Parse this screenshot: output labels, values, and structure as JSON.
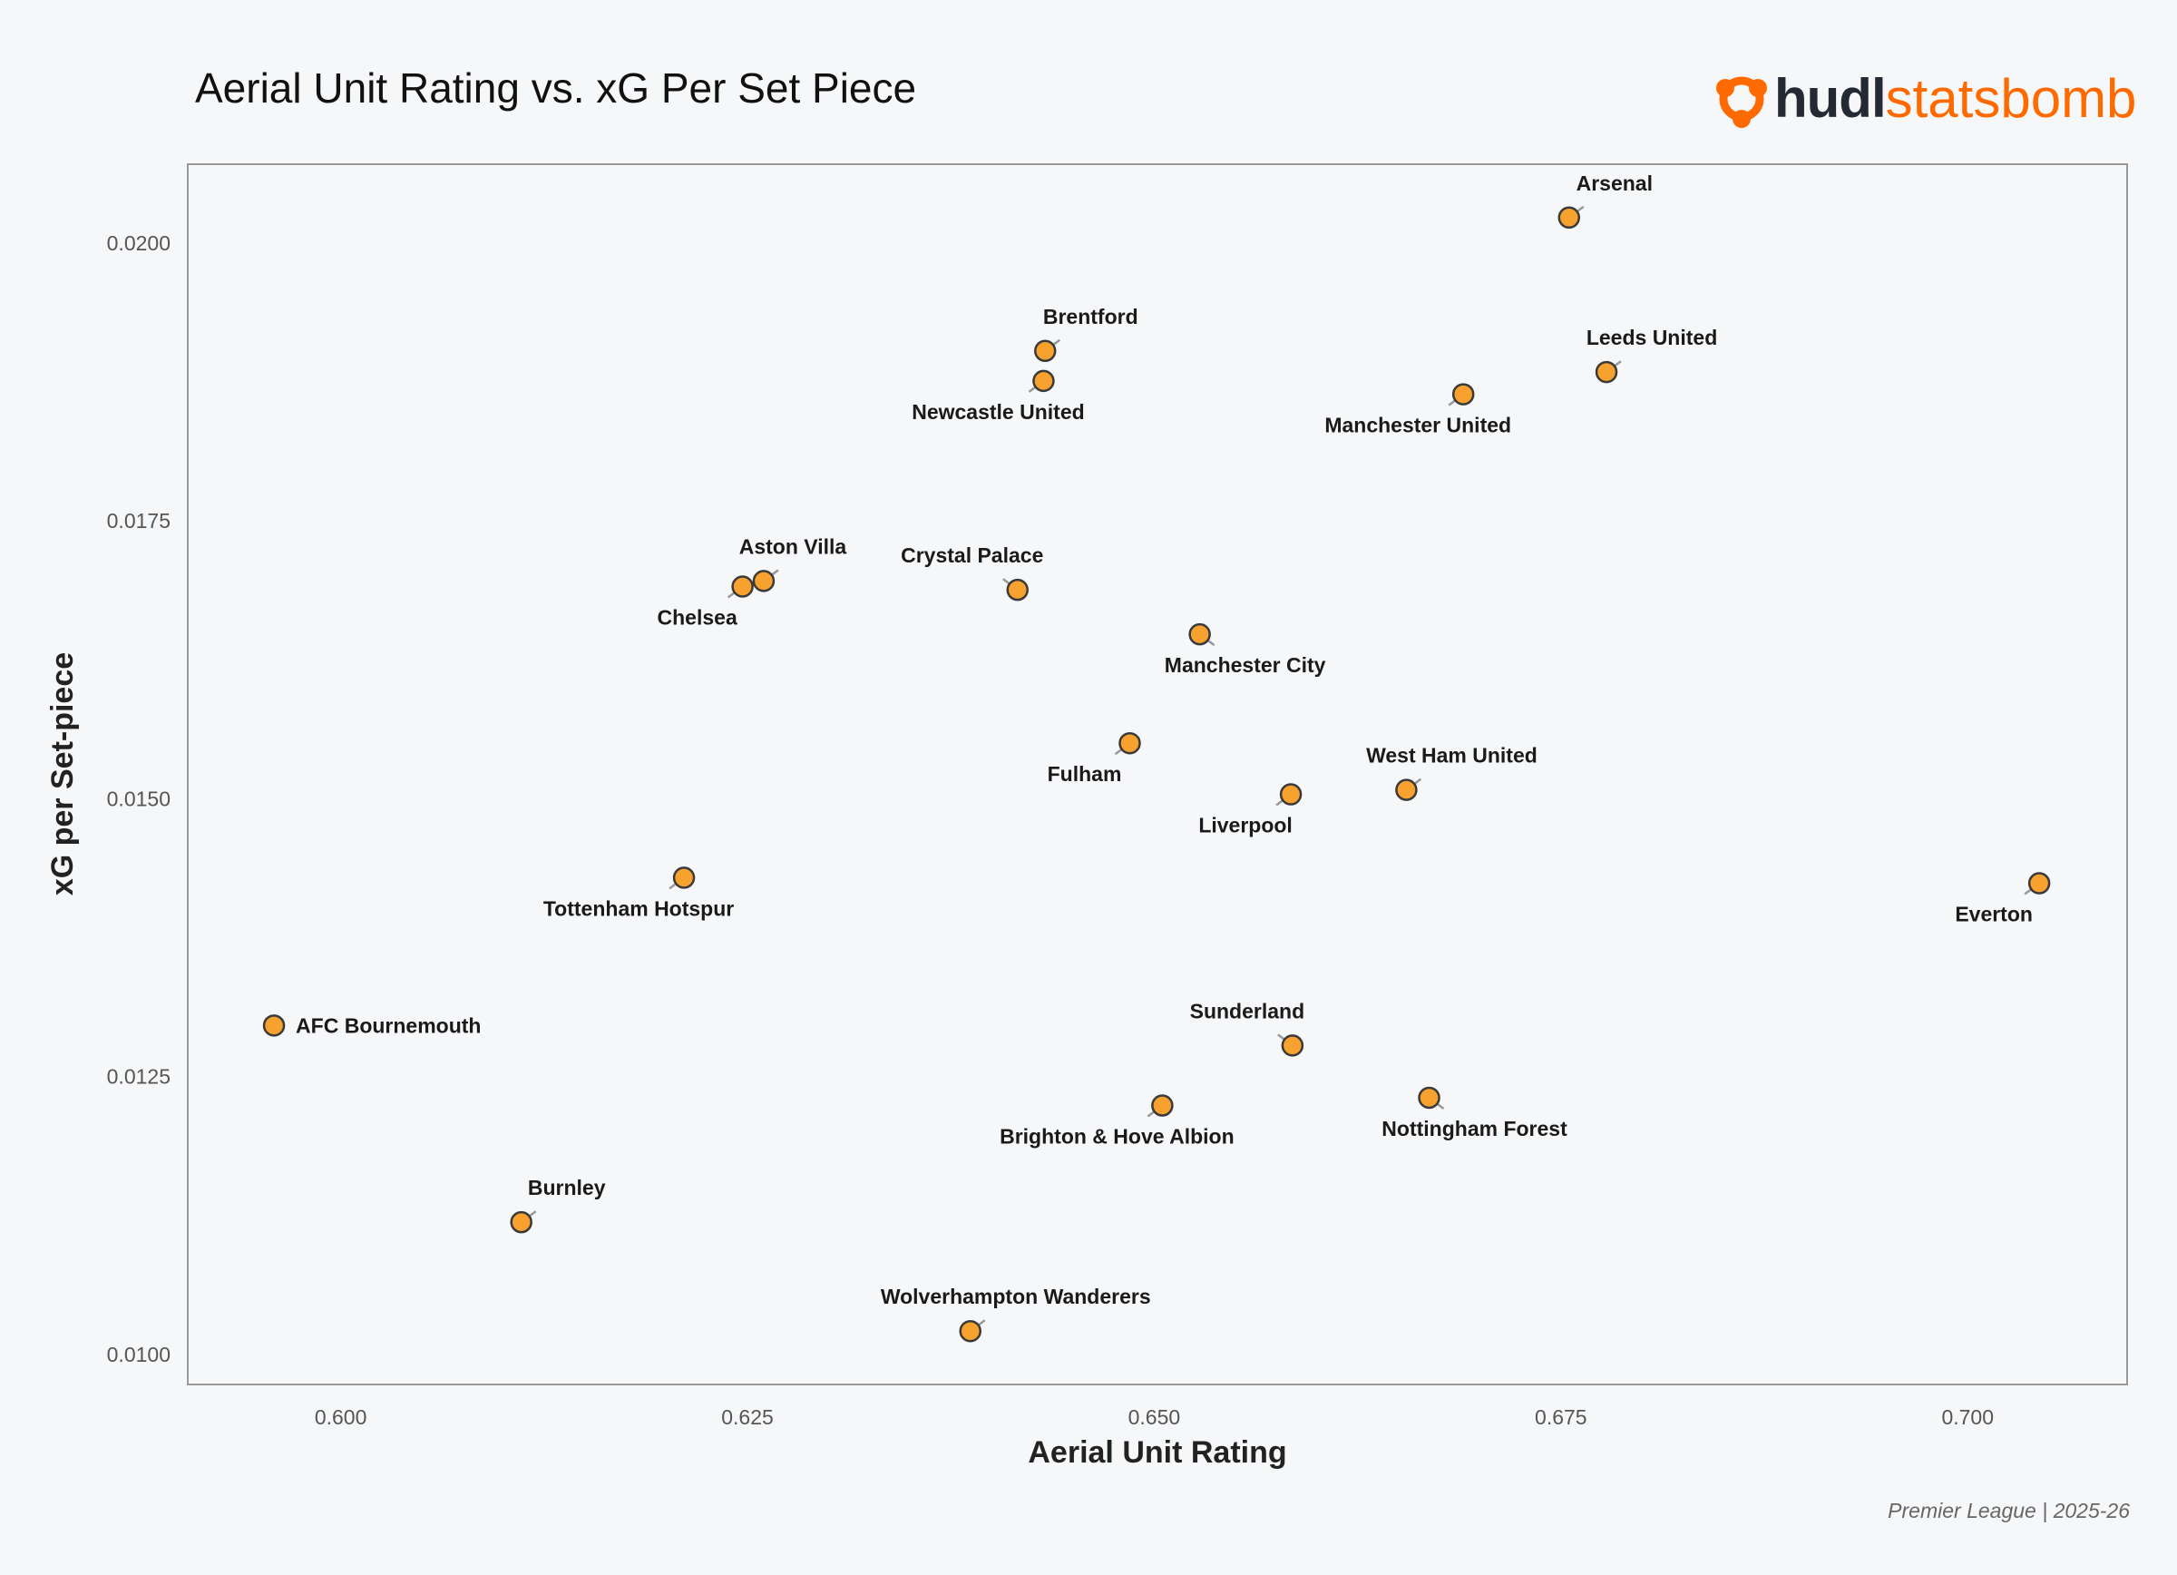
{
  "header": {
    "title": "Aerial Unit Rating vs. xG Per Set Piece",
    "logo_hudl": "hudl",
    "logo_statsbomb": "statsbomb"
  },
  "footer": {
    "text": "Premier League | 2025-26"
  },
  "colors": {
    "marker": "#f7a12f",
    "marker_edge": "#3a3a3a",
    "leader": "#999999",
    "frame": "#999999",
    "brand": "#ff6a00"
  },
  "chart_data": {
    "type": "scatter",
    "title": "Aerial Unit Rating vs. xG Per Set Piece",
    "xlabel": "Aerial Unit Rating",
    "ylabel": "xG per Set-piece",
    "xlim": [
      0.5906,
      0.7098
    ],
    "ylim": [
      0.00973,
      0.02071
    ],
    "xticks": [
      0.6,
      0.625,
      0.65,
      0.675,
      0.7
    ],
    "xtick_labels": [
      "0.600",
      "0.625",
      "0.650",
      "0.675",
      "0.700"
    ],
    "yticks": [
      0.01,
      0.0125,
      0.015,
      0.0175,
      0.02
    ],
    "ytick_labels": [
      "0.0100",
      "0.0125",
      "0.0150",
      "0.0175",
      "0.0200"
    ],
    "grid": false,
    "points": [
      {
        "team": "Arsenal",
        "x": 0.6755,
        "y": 0.02023,
        "label_side": "up-right"
      },
      {
        "team": "Brentford",
        "x": 0.6433,
        "y": 0.01903,
        "label_side": "up-right"
      },
      {
        "team": "Newcastle United",
        "x": 0.6432,
        "y": 0.01876,
        "label_side": "down-left"
      },
      {
        "team": "Leeds United",
        "x": 0.6778,
        "y": 0.01884,
        "label_side": "up-right"
      },
      {
        "team": "Manchester United",
        "x": 0.669,
        "y": 0.01864,
        "label_side": "down-left"
      },
      {
        "team": "Aston Villa",
        "x": 0.626,
        "y": 0.01696,
        "label_side": "up-right-near"
      },
      {
        "team": "Chelsea",
        "x": 0.6247,
        "y": 0.01691,
        "label_side": "down-left"
      },
      {
        "team": "Crystal Palace",
        "x": 0.6416,
        "y": 0.01688,
        "label_side": "up-left"
      },
      {
        "team": "Manchester City",
        "x": 0.6528,
        "y": 0.01648,
        "label_side": "down-right"
      },
      {
        "team": "Fulham",
        "x": 0.6485,
        "y": 0.0155,
        "label_side": "down-left"
      },
      {
        "team": "Liverpool",
        "x": 0.6584,
        "y": 0.01504,
        "label_side": "down-left"
      },
      {
        "team": "West Ham United",
        "x": 0.6655,
        "y": 0.01508,
        "label_side": "up-right"
      },
      {
        "team": "Tottenham Hotspur",
        "x": 0.6211,
        "y": 0.01429,
        "label_side": "down-left"
      },
      {
        "team": "Everton",
        "x": 0.7044,
        "y": 0.01424,
        "label_side": "down-left"
      },
      {
        "team": "AFC Bournemouth",
        "x": 0.5959,
        "y": 0.01296,
        "label_side": "right"
      },
      {
        "team": "Sunderland",
        "x": 0.6585,
        "y": 0.01278,
        "label_side": "up-left"
      },
      {
        "team": "Nottingham Forest",
        "x": 0.6669,
        "y": 0.01231,
        "label_side": "down-right"
      },
      {
        "team": "Brighton & Hove Albion",
        "x": 0.6505,
        "y": 0.01224,
        "label_side": "down-left"
      },
      {
        "team": "Burnley",
        "x": 0.6111,
        "y": 0.01119,
        "label_side": "up-right"
      },
      {
        "team": "Wolverhampton Wanderers",
        "x": 0.6387,
        "y": 0.01021,
        "label_side": "up-right"
      }
    ]
  }
}
